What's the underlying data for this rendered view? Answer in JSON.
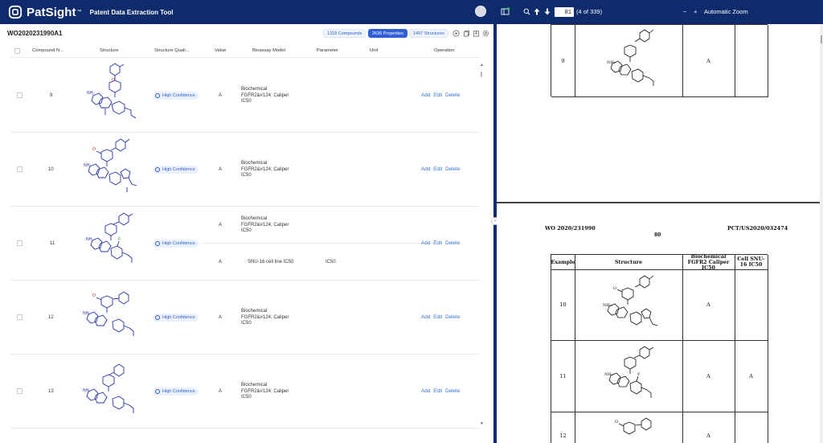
{
  "header": {
    "brand": "PatSight",
    "brand_tm": "™",
    "app_title": "Patent Data Extraction Tool"
  },
  "doc_bar": {
    "doc_id": "WO2020231990A1",
    "pills": [
      {
        "label": "1318 Compounds",
        "active": false
      },
      {
        "label": "2636 Properties",
        "active": true
      },
      {
        "label": "1497 Structures",
        "active": false
      }
    ]
  },
  "table": {
    "columns": [
      "Compound N...",
      "Structure",
      "Structure Quali...",
      "Value",
      "Bioassay Model",
      "Parameter",
      "Unit",
      "Operation"
    ],
    "rows": [
      {
        "id": "9",
        "confidence": "High Confidence",
        "entries": [
          {
            "value": "A",
            "model": "Biochemical FGFR2&#124; Caliper IC50",
            "parameter": "",
            "unit": ""
          }
        ]
      },
      {
        "id": "10",
        "confidence": "High Confidence",
        "entries": [
          {
            "value": "A",
            "model": "Biochemical FGFR2&#124; Caliper IC50",
            "parameter": "",
            "unit": ""
          }
        ]
      },
      {
        "id": "11",
        "confidence": "High Confidence",
        "entries": [
          {
            "value": "A",
            "model": "Biochemical FGFR2&#124; Caliper IC50",
            "parameter": "",
            "unit": ""
          },
          {
            "value": "A",
            "model": "SNU-16 cell line IC50",
            "parameter": "IC50",
            "unit": ""
          }
        ]
      },
      {
        "id": "12",
        "confidence": "High Confidence",
        "entries": [
          {
            "value": "A",
            "model": "Biochemical FGFR2&#124; Caliper IC50",
            "parameter": "",
            "unit": ""
          }
        ]
      },
      {
        "id": "13",
        "confidence": "High Confidence",
        "entries": [
          {
            "value": "A",
            "model": "Biochemical FGFR2&#124; Caliper IC50",
            "parameter": "",
            "unit": ""
          }
        ]
      }
    ],
    "ops": {
      "add": "Add",
      "edit": "Edit",
      "delete": "Delete"
    }
  },
  "pdf": {
    "page_number": "81",
    "page_count": "(4 of 339)",
    "zoom": "Automatic Zoom",
    "zoom_out": "−",
    "zoom_in": "+",
    "page_header_left": "WO 2020/231990",
    "page_header_right": "PCT/US2020/032474",
    "page_num_printed": "80",
    "table_headers": {
      "example": "Example",
      "structure": "Structure",
      "biochem": "Biochemical FGFR2 Caliper IC50",
      "cell": "Cell SNU-16 IC50"
    },
    "rows_top": [
      {
        "example": "9",
        "biochem": "A",
        "cell": ""
      }
    ],
    "rows": [
      {
        "example": "10",
        "biochem": "A",
        "cell": ""
      },
      {
        "example": "11",
        "biochem": "A",
        "cell": "A"
      },
      {
        "example": "12",
        "biochem": "A",
        "cell": ""
      }
    ]
  },
  "colors": {
    "navy": "#0e2b6b",
    "accent": "#2f5fd6",
    "link": "#2f6fd6"
  }
}
